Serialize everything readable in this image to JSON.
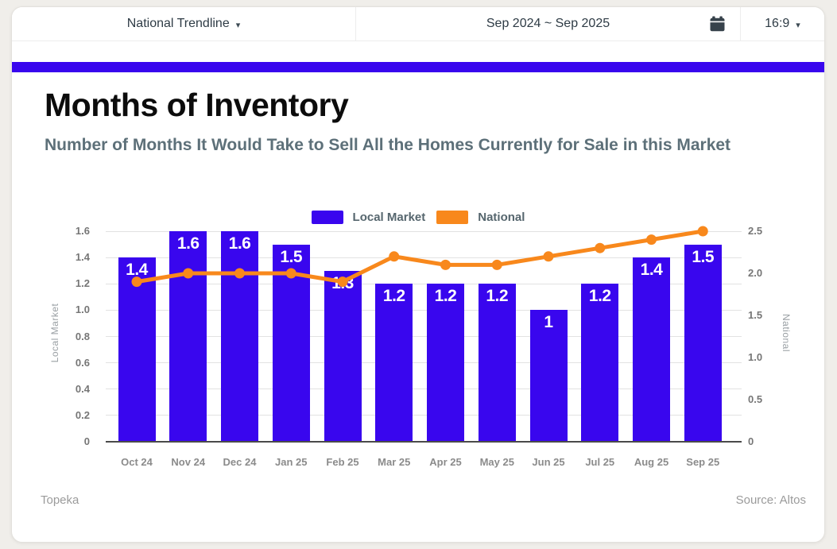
{
  "toolbar": {
    "trendline_selector": "National Trendline",
    "date_range": "Sep 2024 ~ Sep 2025",
    "aspect_ratio": "16:9",
    "caret": "▾"
  },
  "header": {
    "title": "Months of Inventory",
    "subtitle": "Number of Months It Would Take to Sell All the Homes Currently for Sale in this Market"
  },
  "colors": {
    "local_market": "#3906ee",
    "national": "#f8881c",
    "banner": "#3906ee"
  },
  "chart_data": {
    "type": "bar",
    "title": "Months of Inventory",
    "categories": [
      "Oct 24",
      "Nov 24",
      "Dec 24",
      "Jan 25",
      "Feb 25",
      "Mar 25",
      "Apr 25",
      "May 25",
      "Jun 25",
      "Jul 25",
      "Aug 25",
      "Sep 25"
    ],
    "series": [
      {
        "name": "Local Market",
        "type": "bar",
        "axis": "left",
        "color": "#3906ee",
        "values": [
          1.4,
          1.6,
          1.6,
          1.5,
          1.3,
          1.2,
          1.2,
          1.2,
          1.0,
          1.2,
          1.4,
          1.5
        ],
        "labels": [
          "1.4",
          "1.6",
          "1.6",
          "1.5",
          "1.3",
          "1.2",
          "1.2",
          "1.2",
          "1",
          "1.2",
          "1.4",
          "1.5"
        ]
      },
      {
        "name": "National",
        "type": "line",
        "axis": "right",
        "color": "#f8881c",
        "values": [
          1.9,
          2.0,
          2.0,
          2.0,
          1.9,
          2.2,
          2.1,
          2.1,
          2.2,
          2.3,
          2.4,
          2.5
        ]
      }
    ],
    "left_axis": {
      "title": "Local Market",
      "range": [
        0,
        1.6
      ],
      "ticks": [
        "0",
        "0.2",
        "0.4",
        "0.6",
        "0.8",
        "1.0",
        "1.2",
        "1.4",
        "1.6"
      ]
    },
    "right_axis": {
      "title": "National",
      "range": [
        0,
        2.5
      ],
      "ticks": [
        "0",
        "0.5",
        "1.0",
        "1.5",
        "2.0",
        "2.5"
      ]
    },
    "grid": true,
    "legend_position": "top-center",
    "legend": [
      "Local Market",
      "National"
    ]
  },
  "footer": {
    "left": "Topeka",
    "right": "Source: Altos"
  }
}
